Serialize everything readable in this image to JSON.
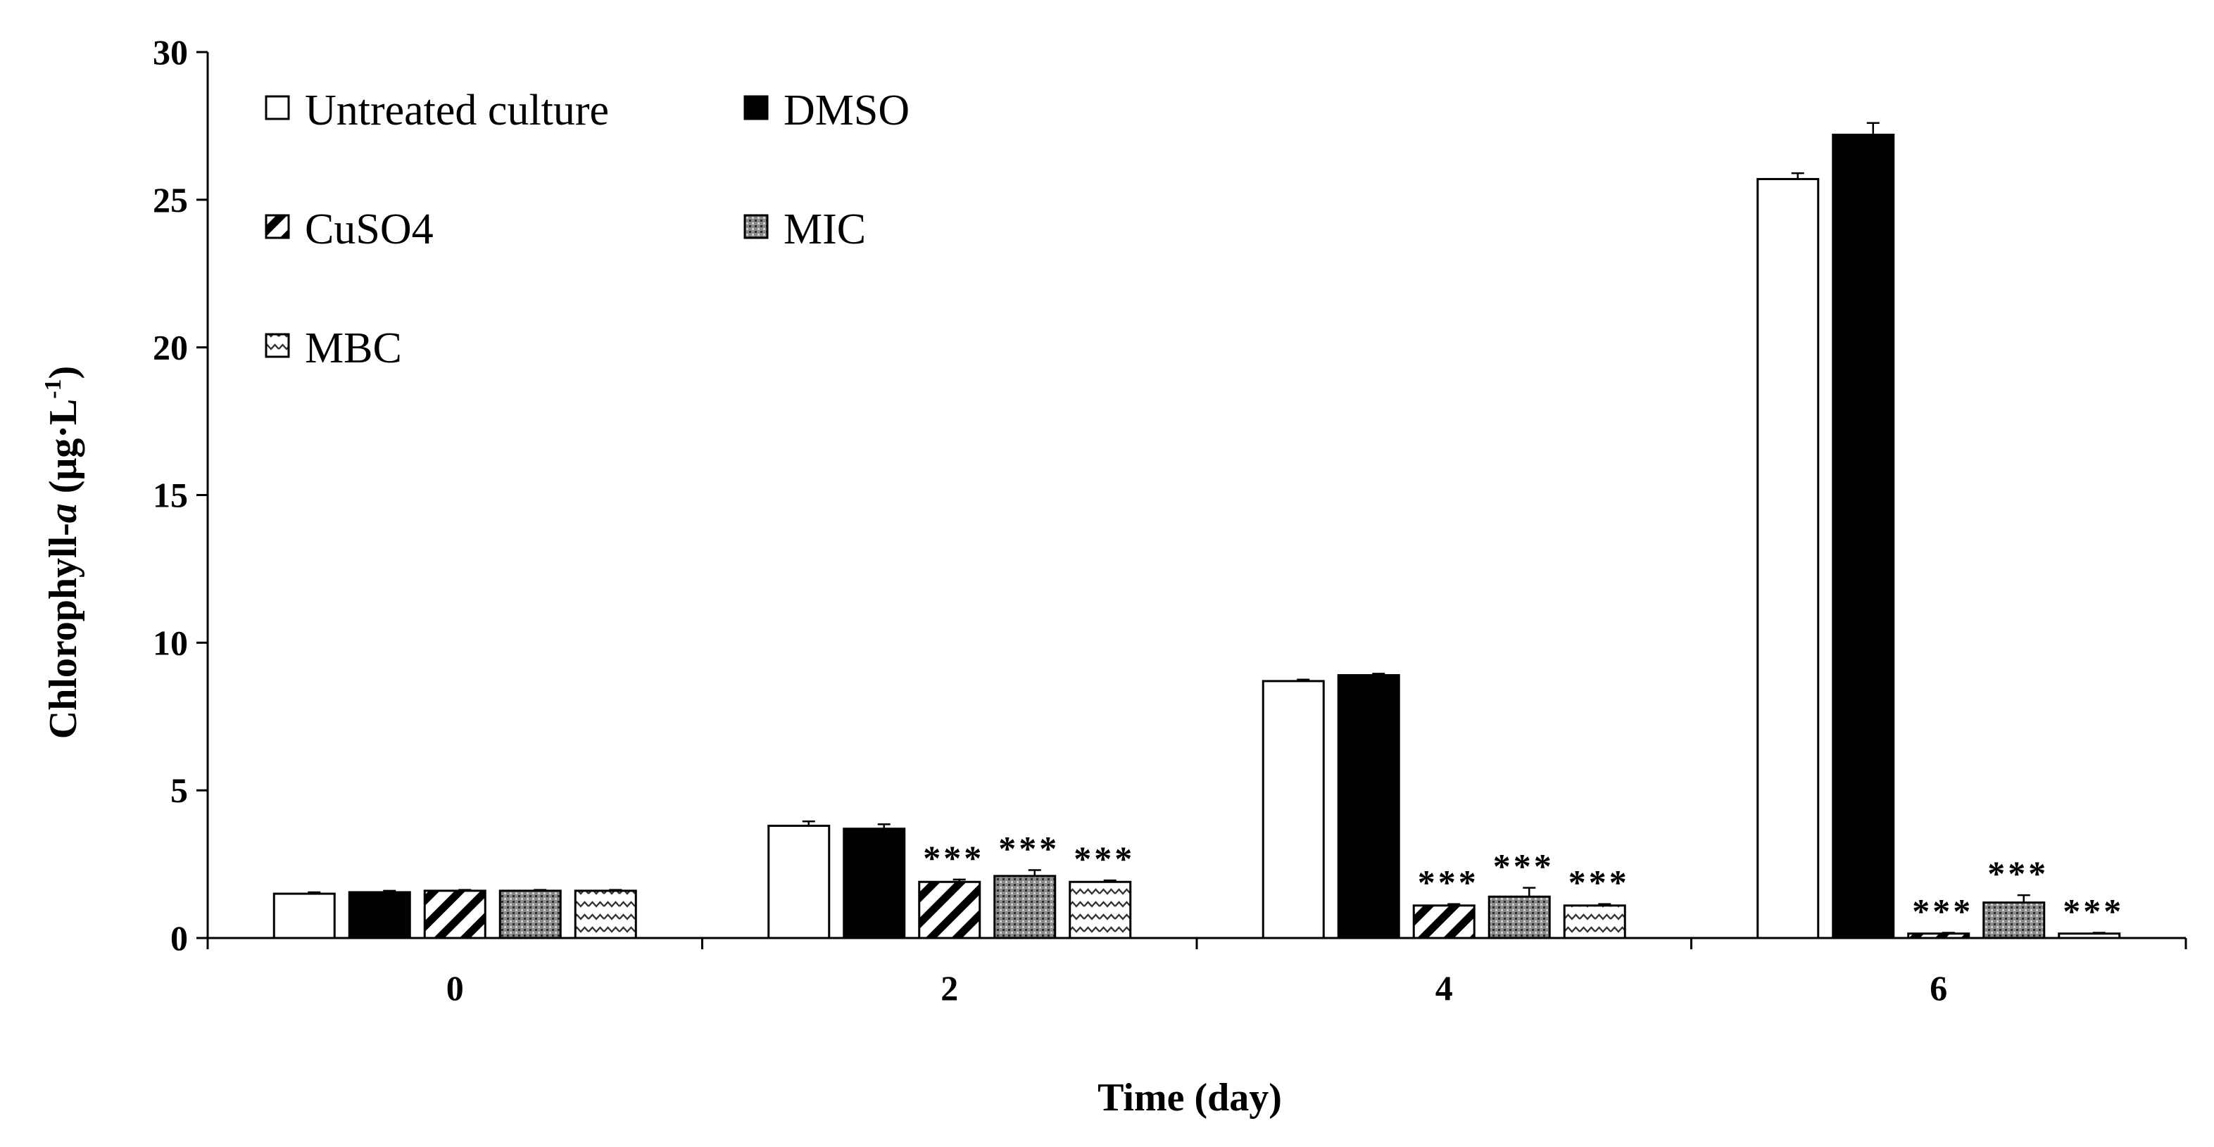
{
  "chart_data": {
    "type": "bar",
    "categories": [
      "0",
      "2",
      "4",
      "6"
    ],
    "series": [
      {
        "name": "Untreated culture",
        "pattern": "solid-white",
        "values": [
          1.5,
          3.8,
          8.7,
          25.7
        ],
        "errors": [
          0.05,
          0.15,
          0.05,
          0.2
        ],
        "significance": [
          "",
          "",
          "",
          ""
        ]
      },
      {
        "name": "DMSO",
        "pattern": "solid-black",
        "values": [
          1.55,
          3.7,
          8.9,
          27.2
        ],
        "errors": [
          0.05,
          0.15,
          0.05,
          0.4
        ],
        "significance": [
          "",
          "",
          "",
          ""
        ]
      },
      {
        "name": "CuSO4",
        "pattern": "diagonal-stripes",
        "values": [
          1.6,
          1.9,
          1.1,
          0.15
        ],
        "errors": [
          0.03,
          0.08,
          0.05,
          0.03
        ],
        "significance": [
          "",
          "***",
          "***",
          "***"
        ]
      },
      {
        "name": "MIC",
        "pattern": "dots",
        "values": [
          1.6,
          2.1,
          1.4,
          1.2
        ],
        "errors": [
          0.03,
          0.2,
          0.3,
          0.25
        ],
        "significance": [
          "",
          "***",
          "***",
          "***"
        ]
      },
      {
        "name": "MBC",
        "pattern": "zigzag",
        "values": [
          1.6,
          1.9,
          1.1,
          0.15
        ],
        "errors": [
          0.03,
          0.05,
          0.05,
          0.03
        ],
        "significance": [
          "",
          "***",
          "***",
          "***"
        ]
      }
    ],
    "title": "",
    "xlabel": "Time (day)",
    "ylabel": "Chlorophyll-a (μg·L-1)",
    "ylabel_parts": {
      "prefix": "Chlorophyll-",
      "italic": "a",
      "unit_open": " (μg·L",
      "superscript": "-1",
      "unit_close": ")"
    },
    "ylim": [
      0,
      30
    ],
    "yticks": [
      "0",
      "5",
      "10",
      "15",
      "20",
      "25",
      "30"
    ],
    "legend_position": "top-left",
    "grid": false
  }
}
